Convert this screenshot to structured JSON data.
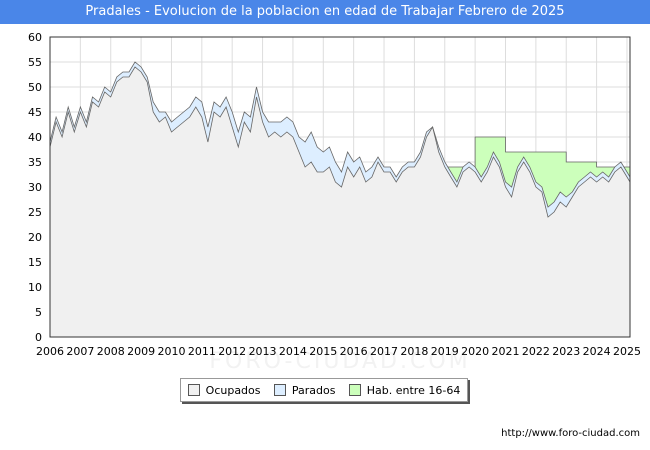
{
  "header": {
    "title": "Pradales - Evolucion de la poblacion en edad de Trabajar Febrero de 2025"
  },
  "footer": {
    "url": "http://www.foro-ciudad.com"
  },
  "watermark": "FORO-CIUDAD.COM",
  "colors": {
    "ocupados": "#f0f0f0",
    "parados": "#ddeeff",
    "hab": "#ccffbb",
    "line": "#666666",
    "title_bg": "#4a86e8"
  },
  "chart_data": {
    "type": "area",
    "title": "Pradales - Evolucion de la poblacion en edad de Trabajar Febrero de 2025",
    "xlim": [
      2006,
      2025.1
    ],
    "ylim": [
      0,
      60
    ],
    "x_ticks": [
      "2006",
      "2007",
      "2008",
      "2009",
      "2010",
      "2011",
      "2012",
      "2013",
      "2014",
      "2015",
      "2016",
      "2017",
      "2018",
      "2019",
      "2020",
      "2021",
      "2022",
      "2023",
      "2024",
      "2025"
    ],
    "y_ticks": [
      0,
      5,
      10,
      15,
      20,
      25,
      30,
      35,
      40,
      45,
      50,
      55,
      60
    ],
    "grid": true,
    "legend_position": "bottom",
    "legend": [
      "Ocupados",
      "Parados",
      "Hab. entre 16-64"
    ],
    "series": [
      {
        "name": "Ocupados",
        "points": [
          [
            2006,
            38
          ],
          [
            2006.2,
            43
          ],
          [
            2006.4,
            40
          ],
          [
            2006.6,
            45
          ],
          [
            2006.8,
            41
          ],
          [
            2007,
            45
          ],
          [
            2007.2,
            42
          ],
          [
            2007.4,
            47
          ],
          [
            2007.6,
            46
          ],
          [
            2007.8,
            49
          ],
          [
            2008,
            48
          ],
          [
            2008.2,
            51
          ],
          [
            2008.4,
            52
          ],
          [
            2008.6,
            52
          ],
          [
            2008.8,
            54
          ],
          [
            2009,
            53
          ],
          [
            2009.2,
            51
          ],
          [
            2009.4,
            45
          ],
          [
            2009.6,
            43
          ],
          [
            2009.8,
            44
          ],
          [
            2010,
            41
          ],
          [
            2010.2,
            42
          ],
          [
            2010.4,
            43
          ],
          [
            2010.6,
            44
          ],
          [
            2010.8,
            46
          ],
          [
            2011,
            44
          ],
          [
            2011.2,
            39
          ],
          [
            2011.4,
            45
          ],
          [
            2011.6,
            44
          ],
          [
            2011.8,
            46
          ],
          [
            2012,
            42
          ],
          [
            2012.2,
            38
          ],
          [
            2012.4,
            43
          ],
          [
            2012.6,
            41
          ],
          [
            2012.8,
            48
          ],
          [
            2013,
            43
          ],
          [
            2013.2,
            40
          ],
          [
            2013.4,
            41
          ],
          [
            2013.6,
            40
          ],
          [
            2013.8,
            41
          ],
          [
            2014,
            40
          ],
          [
            2014.2,
            37
          ],
          [
            2014.4,
            34
          ],
          [
            2014.6,
            35
          ],
          [
            2014.8,
            33
          ],
          [
            2015,
            33
          ],
          [
            2015.2,
            34
          ],
          [
            2015.4,
            31
          ],
          [
            2015.6,
            30
          ],
          [
            2015.8,
            34
          ],
          [
            2016,
            32
          ],
          [
            2016.2,
            34
          ],
          [
            2016.4,
            31
          ],
          [
            2016.6,
            32
          ],
          [
            2016.8,
            35
          ],
          [
            2017,
            33
          ],
          [
            2017.2,
            33
          ],
          [
            2017.4,
            31
          ],
          [
            2017.6,
            33
          ],
          [
            2017.8,
            34
          ],
          [
            2018,
            34
          ],
          [
            2018.2,
            36
          ],
          [
            2018.4,
            40
          ],
          [
            2018.6,
            42
          ],
          [
            2018.8,
            37
          ],
          [
            2019,
            34
          ],
          [
            2019.2,
            32
          ],
          [
            2019.4,
            30
          ],
          [
            2019.6,
            33
          ],
          [
            2019.8,
            34
          ],
          [
            2020,
            33
          ],
          [
            2020.2,
            31
          ],
          [
            2020.4,
            33
          ],
          [
            2020.6,
            36
          ],
          [
            2020.8,
            34
          ],
          [
            2021,
            30
          ],
          [
            2021.2,
            28
          ],
          [
            2021.4,
            33
          ],
          [
            2021.6,
            35
          ],
          [
            2021.8,
            33
          ],
          [
            2022,
            30
          ],
          [
            2022.2,
            29
          ],
          [
            2022.4,
            24
          ],
          [
            2022.6,
            25
          ],
          [
            2022.8,
            27
          ],
          [
            2023,
            26
          ],
          [
            2023.2,
            28
          ],
          [
            2023.4,
            30
          ],
          [
            2023.6,
            31
          ],
          [
            2023.8,
            32
          ],
          [
            2024,
            31
          ],
          [
            2024.2,
            32
          ],
          [
            2024.4,
            31
          ],
          [
            2024.6,
            33
          ],
          [
            2024.8,
            34
          ],
          [
            2025,
            32
          ],
          [
            2025.1,
            31
          ]
        ]
      },
      {
        "name": "Parados",
        "points": [
          [
            2006,
            39
          ],
          [
            2006.2,
            44
          ],
          [
            2006.4,
            41
          ],
          [
            2006.6,
            46
          ],
          [
            2006.8,
            42
          ],
          [
            2007,
            46
          ],
          [
            2007.2,
            43
          ],
          [
            2007.4,
            48
          ],
          [
            2007.6,
            47
          ],
          [
            2007.8,
            50
          ],
          [
            2008,
            49
          ],
          [
            2008.2,
            52
          ],
          [
            2008.4,
            53
          ],
          [
            2008.6,
            53
          ],
          [
            2008.8,
            55
          ],
          [
            2009,
            54
          ],
          [
            2009.2,
            52
          ],
          [
            2009.4,
            47
          ],
          [
            2009.6,
            45
          ],
          [
            2009.8,
            45
          ],
          [
            2010,
            43
          ],
          [
            2010.2,
            44
          ],
          [
            2010.4,
            45
          ],
          [
            2010.6,
            46
          ],
          [
            2010.8,
            48
          ],
          [
            2011,
            47
          ],
          [
            2011.2,
            42
          ],
          [
            2011.4,
            47
          ],
          [
            2011.6,
            46
          ],
          [
            2011.8,
            48
          ],
          [
            2012,
            45
          ],
          [
            2012.2,
            41
          ],
          [
            2012.4,
            45
          ],
          [
            2012.6,
            44
          ],
          [
            2012.8,
            50
          ],
          [
            2013,
            45
          ],
          [
            2013.2,
            43
          ],
          [
            2013.4,
            43
          ],
          [
            2013.6,
            43
          ],
          [
            2013.8,
            44
          ],
          [
            2014,
            43
          ],
          [
            2014.2,
            40
          ],
          [
            2014.4,
            39
          ],
          [
            2014.6,
            41
          ],
          [
            2014.8,
            38
          ],
          [
            2015,
            37
          ],
          [
            2015.2,
            38
          ],
          [
            2015.4,
            35
          ],
          [
            2015.6,
            33
          ],
          [
            2015.8,
            37
          ],
          [
            2016,
            35
          ],
          [
            2016.2,
            36
          ],
          [
            2016.4,
            33
          ],
          [
            2016.6,
            34
          ],
          [
            2016.8,
            36
          ],
          [
            2017,
            34
          ],
          [
            2017.2,
            34
          ],
          [
            2017.4,
            32
          ],
          [
            2017.6,
            34
          ],
          [
            2017.8,
            35
          ],
          [
            2018,
            35
          ],
          [
            2018.2,
            37
          ],
          [
            2018.4,
            41
          ],
          [
            2018.6,
            42
          ],
          [
            2018.8,
            38
          ],
          [
            2019,
            35
          ],
          [
            2019.2,
            33
          ],
          [
            2019.4,
            31
          ],
          [
            2019.6,
            34
          ],
          [
            2019.8,
            35
          ],
          [
            2020,
            34
          ],
          [
            2020.2,
            32
          ],
          [
            2020.4,
            34
          ],
          [
            2020.6,
            37
          ],
          [
            2020.8,
            35
          ],
          [
            2021,
            31
          ],
          [
            2021.2,
            30
          ],
          [
            2021.4,
            34
          ],
          [
            2021.6,
            36
          ],
          [
            2021.8,
            34
          ],
          [
            2022,
            31
          ],
          [
            2022.2,
            30
          ],
          [
            2022.4,
            26
          ],
          [
            2022.6,
            27
          ],
          [
            2022.8,
            29
          ],
          [
            2023,
            28
          ],
          [
            2023.2,
            29
          ],
          [
            2023.4,
            31
          ],
          [
            2023.6,
            32
          ],
          [
            2023.8,
            33
          ],
          [
            2024,
            32
          ],
          [
            2024.2,
            33
          ],
          [
            2024.4,
            32
          ],
          [
            2024.6,
            34
          ],
          [
            2024.8,
            35
          ],
          [
            2025,
            33
          ],
          [
            2025.1,
            32
          ]
        ]
      },
      {
        "name": "Hab. entre 16-64",
        "points": [
          [
            2019,
            34
          ],
          [
            2020,
            34
          ],
          [
            2020,
            40
          ],
          [
            2021,
            40
          ],
          [
            2021,
            37
          ],
          [
            2023,
            37
          ],
          [
            2023,
            35
          ],
          [
            2024,
            35
          ],
          [
            2024,
            34
          ],
          [
            2025.1,
            34
          ]
        ]
      }
    ]
  }
}
